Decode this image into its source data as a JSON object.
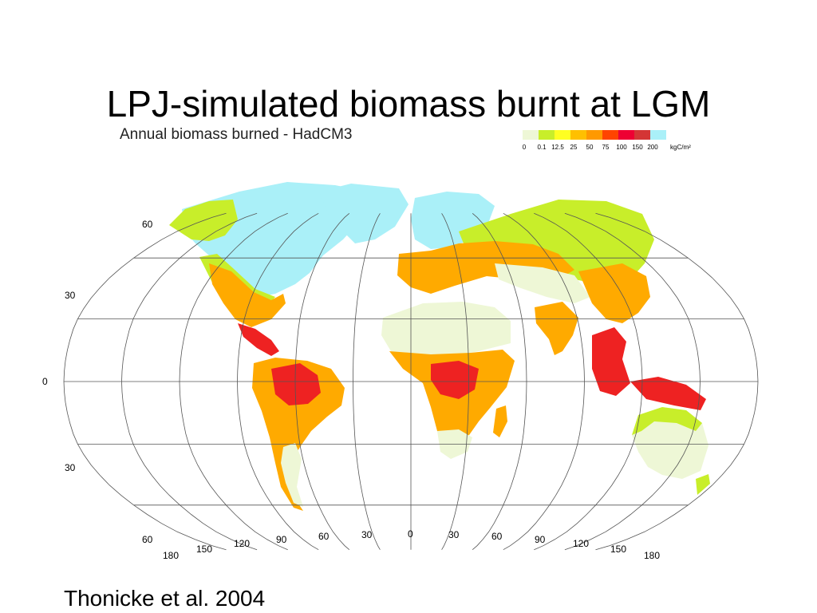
{
  "slide_title": "LPJ-simulated biomass burnt at LGM",
  "figure_title": "Annual biomass burned - HadCM3",
  "legend": {
    "ticks": [
      "0",
      "0.1",
      "12.5",
      "25",
      "50",
      "75",
      "100",
      "150",
      "200"
    ],
    "unit": "kgC/m²",
    "colors": [
      "#eef7d6",
      "#c8ee2a",
      "#ffff22",
      "#ffc000",
      "#ff9900",
      "#ff4400",
      "#ee0033",
      "#d43535",
      "#aaf0f8"
    ]
  },
  "map": {
    "projection": "Robinson",
    "lat_labels": [
      "60",
      "30",
      "0",
      "30",
      "60"
    ],
    "lon_labels": [
      "180",
      "150",
      "120",
      "90",
      "60",
      "30",
      "0",
      "30",
      "60",
      "90",
      "120",
      "150",
      "180"
    ],
    "colors": {
      "ice": "#aaf0f8",
      "dry": "#eef7d6",
      "green": "#c8ee2a",
      "orange": "#ffaa00",
      "red": "#ee2222",
      "graticule": "#555555"
    }
  },
  "citation": "Thonicke et al. 2004"
}
